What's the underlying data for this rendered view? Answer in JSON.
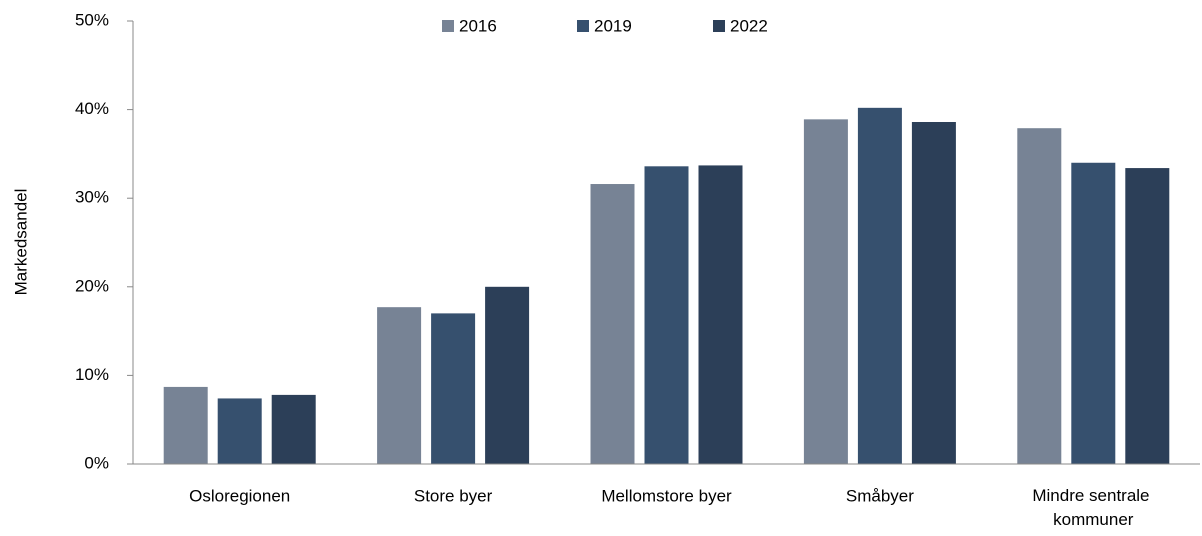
{
  "chart_data": {
    "type": "bar",
    "y_label": "Markedsandel",
    "categories": [
      "Osloregionen",
      "Store byer",
      "Mellomstore byer",
      "Småbyer",
      "Mindre sentrale kommuner"
    ],
    "series": [
      {
        "name": "2016",
        "color": "#778395",
        "values": [
          8.7,
          17.7,
          31.6,
          38.9,
          37.9
        ]
      },
      {
        "name": "2019",
        "color": "#36506e",
        "values": [
          7.4,
          17.0,
          33.6,
          40.2,
          34.0
        ]
      },
      {
        "name": "2022",
        "color": "#2c3f58",
        "values": [
          7.8,
          20.0,
          33.7,
          38.6,
          33.4
        ]
      }
    ],
    "ylim": [
      0,
      50
    ],
    "yticks": [
      {
        "value": 0,
        "label": "0%"
      },
      {
        "value": 10,
        "label": "10%"
      },
      {
        "value": 20,
        "label": "20%"
      },
      {
        "value": 30,
        "label": "30%"
      },
      {
        "value": 40,
        "label": "40%"
      },
      {
        "value": 50,
        "label": "50%"
      }
    ],
    "grid": false,
    "legend": "top"
  }
}
